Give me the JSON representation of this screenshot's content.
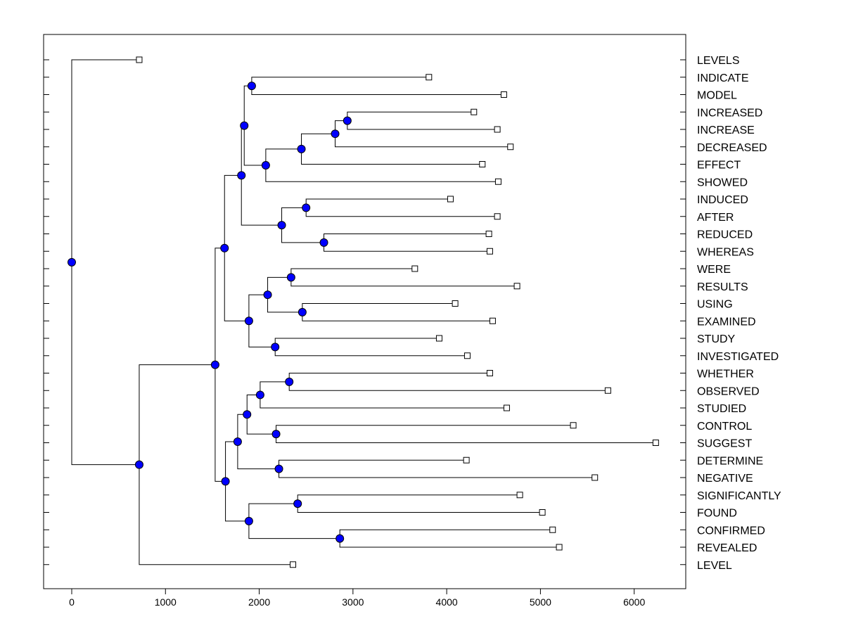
{
  "chart_data": {
    "type": "dendrogram",
    "title": "",
    "xlabel": "",
    "ylabel": "",
    "xlim": [
      -300,
      6550
    ],
    "x_ticks": [
      "0",
      "1000",
      "2000",
      "3000",
      "4000",
      "5000",
      "6000"
    ],
    "x_tick_values": [
      0,
      1000,
      2000,
      3000,
      4000,
      5000,
      6000
    ],
    "grid": false,
    "node_color": "#0000FF",
    "leaf_marker_color": "#FFFFFF",
    "line_color": "#000000",
    "leaves": [
      {
        "label": "LEVELS",
        "x": 720
      },
      {
        "label": "INDICATE",
        "x": 3810
      },
      {
        "label": "MODEL",
        "x": 4610
      },
      {
        "label": "INCREASED",
        "x": 4290
      },
      {
        "label": "INCREASE",
        "x": 4540
      },
      {
        "label": "DECREASED",
        "x": 4680
      },
      {
        "label": "EFFECT",
        "x": 4380
      },
      {
        "label": "SHOWED",
        "x": 4550
      },
      {
        "label": "INDUCED",
        "x": 4040
      },
      {
        "label": "AFTER",
        "x": 4540
      },
      {
        "label": "REDUCED",
        "x": 4450
      },
      {
        "label": "WHEREAS",
        "x": 4460
      },
      {
        "label": "WERE",
        "x": 3660
      },
      {
        "label": "RESULTS",
        "x": 4750
      },
      {
        "label": "USING",
        "x": 4090
      },
      {
        "label": "EXAMINED",
        "x": 4490
      },
      {
        "label": "STUDY",
        "x": 3920
      },
      {
        "label": "INVESTIGATED",
        "x": 4220
      },
      {
        "label": "WHETHER",
        "x": 4460
      },
      {
        "label": "OBSERVED",
        "x": 5720
      },
      {
        "label": "STUDIED",
        "x": 4640
      },
      {
        "label": "CONTROL",
        "x": 5350
      },
      {
        "label": "SUGGEST",
        "x": 6230
      },
      {
        "label": "DETERMINE",
        "x": 4210
      },
      {
        "label": "NEGATIVE",
        "x": 5580
      },
      {
        "label": "SIGNIFICANTLY",
        "x": 4780
      },
      {
        "label": "FOUND",
        "x": 5020
      },
      {
        "label": "CONFIRMED",
        "x": 5130
      },
      {
        "label": "REVEALED",
        "x": 5200
      },
      {
        "label": "LEVEL",
        "x": 2360
      }
    ],
    "merges": [
      {
        "children": [
          "INDICATE",
          "MODEL"
        ],
        "x": 1920
      },
      {
        "children": [
          "INCREASED",
          "INCREASE"
        ],
        "x": 2940
      },
      {
        "children": [
          1,
          "DECREASED"
        ],
        "x": 2810
      },
      {
        "children": [
          2,
          "EFFECT"
        ],
        "x": 2450
      },
      {
        "children": [
          3,
          "SHOWED"
        ],
        "x": 2070
      },
      {
        "children": [
          0,
          4
        ],
        "x": 1840
      },
      {
        "children": [
          "INDUCED",
          "AFTER"
        ],
        "x": 2500
      },
      {
        "children": [
          "REDUCED",
          "WHEREAS"
        ],
        "x": 2690
      },
      {
        "children": [
          6,
          7
        ],
        "x": 2240
      },
      {
        "children": [
          5,
          8
        ],
        "x": 1810
      },
      {
        "children": [
          "WERE",
          "RESULTS"
        ],
        "x": 2340
      },
      {
        "children": [
          "USING",
          "EXAMINED"
        ],
        "x": 2460
      },
      {
        "children": [
          10,
          11
        ],
        "x": 2090
      },
      {
        "children": [
          "STUDY",
          "INVESTIGATED"
        ],
        "x": 2170
      },
      {
        "children": [
          12,
          13
        ],
        "x": 1890
      },
      {
        "children": [
          9,
          14
        ],
        "x": 1630
      },
      {
        "children": [
          "WHETHER",
          "OBSERVED"
        ],
        "x": 2320
      },
      {
        "children": [
          16,
          "STUDIED"
        ],
        "x": 2010
      },
      {
        "children": [
          "CONTROL",
          "SUGGEST"
        ],
        "x": 2180
      },
      {
        "children": [
          17,
          18
        ],
        "x": 1870
      },
      {
        "children": [
          "DETERMINE",
          "NEGATIVE"
        ],
        "x": 2210
      },
      {
        "children": [
          19,
          20
        ],
        "x": 1770
      },
      {
        "children": [
          "SIGNIFICANTLY",
          "FOUND"
        ],
        "x": 2410
      },
      {
        "children": [
          "CONFIRMED",
          "REVEALED"
        ],
        "x": 2860
      },
      {
        "children": [
          22,
          23
        ],
        "x": 1890
      },
      {
        "children": [
          21,
          24
        ],
        "x": 1640
      },
      {
        "children": [
          15,
          25
        ],
        "x": 1530
      },
      {
        "children": [
          26,
          "LEVEL"
        ],
        "x": 720
      },
      {
        "children": [
          "LEVELS",
          27
        ],
        "x": 0
      }
    ]
  }
}
